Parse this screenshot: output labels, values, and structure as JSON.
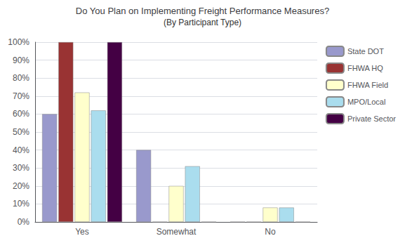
{
  "chart_data": {
    "type": "bar",
    "title": "Do You Plan on Implementing Freight Performance Measures?",
    "subtitle": "(By Participant Type)",
    "categories": [
      "Yes",
      "Somewhat",
      "No"
    ],
    "series": [
      {
        "name": "State DOT",
        "color": "#9999cc",
        "values": [
          60,
          40,
          0
        ]
      },
      {
        "name": "FHWA HQ",
        "color": "#993333",
        "values": [
          100,
          0,
          0
        ]
      },
      {
        "name": "FHWA Field",
        "color": "#ffffcc",
        "values": [
          72,
          20,
          8
        ]
      },
      {
        "name": "MPO/Local",
        "color": "#aaddee",
        "values": [
          62,
          31,
          8
        ]
      },
      {
        "name": "Private Sector",
        "color": "#440044",
        "values": [
          100,
          0,
          0
        ]
      }
    ],
    "ylim": [
      0,
      100
    ],
    "yticks": [
      {
        "value": 0,
        "label": "0%"
      },
      {
        "value": 10,
        "label": "10%"
      },
      {
        "value": 20,
        "label": "20%"
      },
      {
        "value": 30,
        "label": "30%"
      },
      {
        "value": 40,
        "label": "40%"
      },
      {
        "value": 50,
        "label": "50%"
      },
      {
        "value": 60,
        "label": "60%"
      },
      {
        "value": 70,
        "label": "70%"
      },
      {
        "value": 80,
        "label": "80%"
      },
      {
        "value": 90,
        "label": "90%"
      },
      {
        "value": 100,
        "label": "100%"
      }
    ],
    "grid": true,
    "legend": "upper right"
  }
}
